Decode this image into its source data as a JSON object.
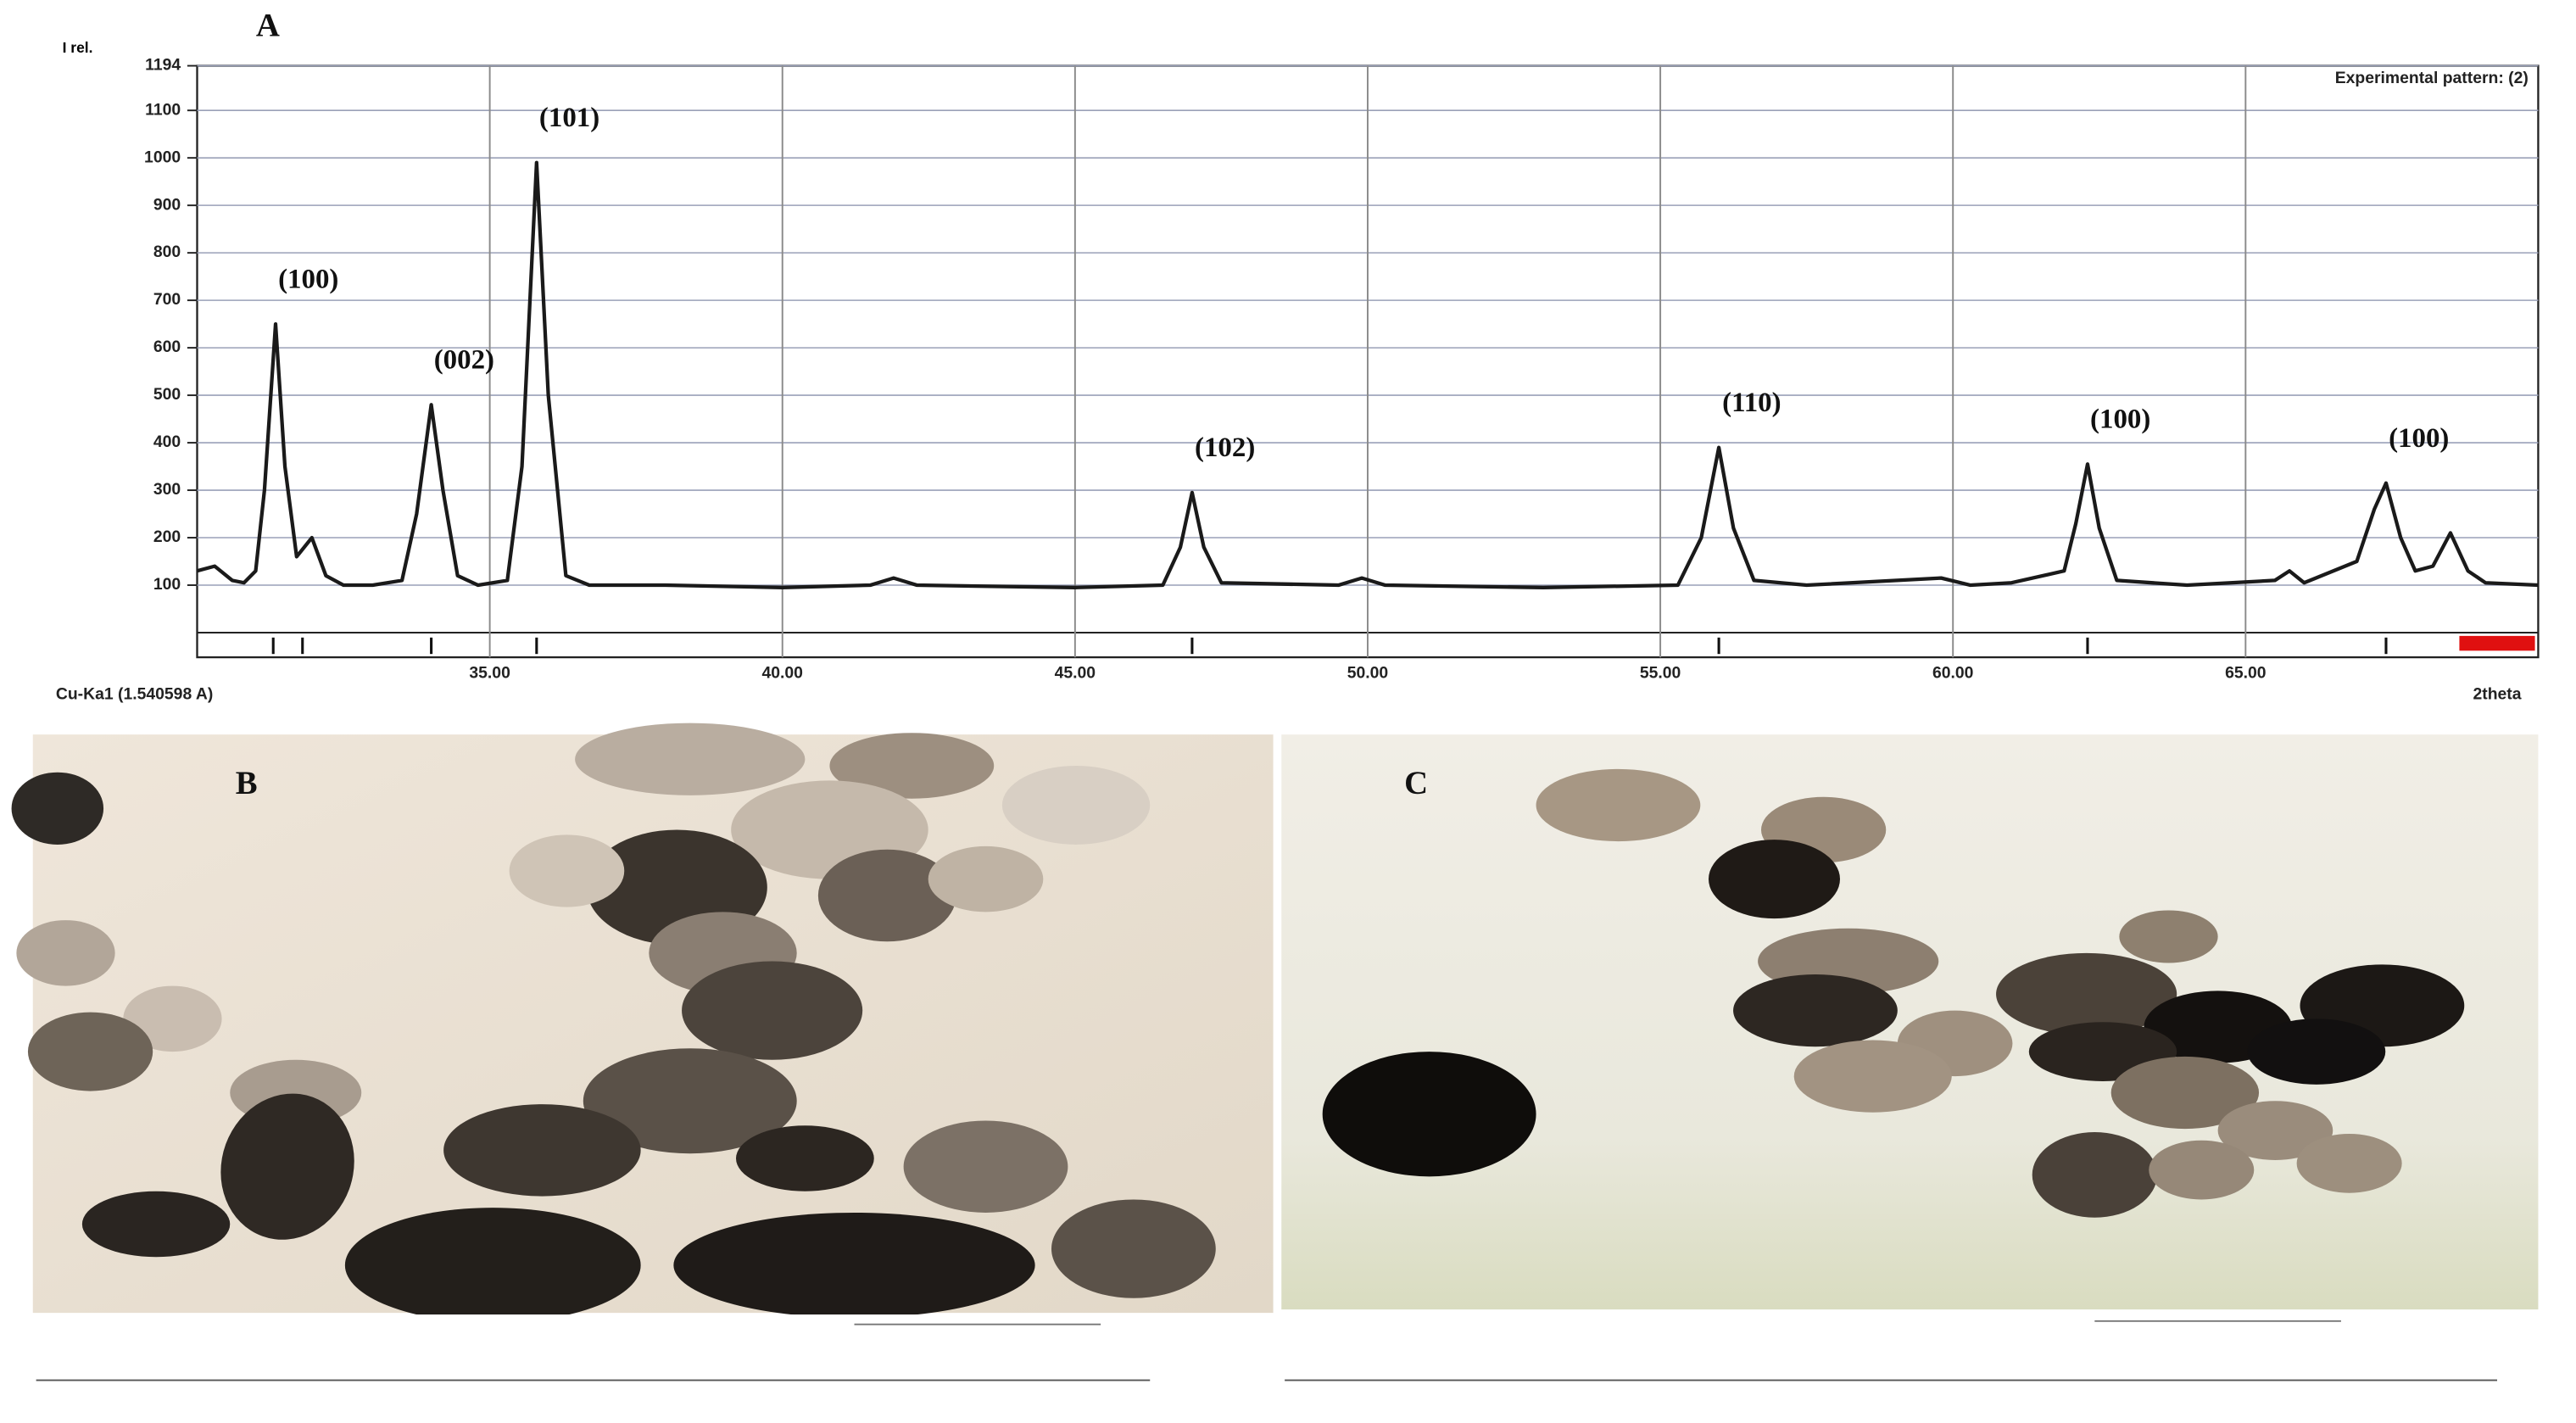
{
  "chart_data": {
    "type": "line",
    "title": "A",
    "y_label": "I rel.",
    "x_label": "2theta",
    "x_note": "Cu-Ka1 (1.540598 A)",
    "x": [
      30,
      30.3,
      30.6,
      30.8,
      31.0,
      31.15,
      31.34,
      31.5,
      31.7,
      31.96,
      32.2,
      32.5,
      33.0,
      33.5,
      33.75,
      34.0,
      34.2,
      34.45,
      34.8,
      35.3,
      35.55,
      35.8,
      36.0,
      36.3,
      36.7,
      38,
      40,
      41.5,
      41.9,
      42.3,
      45,
      46.5,
      46.8,
      47.0,
      47.2,
      47.5,
      49.5,
      49.9,
      50.3,
      53,
      55.3,
      55.7,
      56.0,
      56.25,
      56.6,
      57.5,
      59.8,
      60.3,
      61,
      61.9,
      62.1,
      62.3,
      62.5,
      62.8,
      64,
      65.5,
      65.75,
      66.0,
      66.9,
      67.2,
      67.4,
      67.65,
      67.9,
      68.2,
      68.5,
      68.8,
      69.1,
      70
    ],
    "series": [
      {
        "name": "Experimental pattern: (2)",
        "color": "#1a1a1a",
        "values": [
          130,
          140,
          110,
          105,
          130,
          300,
          650,
          350,
          160,
          200,
          120,
          100,
          100,
          110,
          250,
          480,
          300,
          120,
          100,
          110,
          350,
          990,
          500,
          120,
          100,
          100,
          95,
          100,
          115,
          100,
          95,
          100,
          180,
          295,
          180,
          105,
          100,
          115,
          100,
          95,
          100,
          200,
          390,
          220,
          110,
          100,
          115,
          100,
          105,
          130,
          230,
          355,
          220,
          110,
          100,
          110,
          130,
          105,
          150,
          260,
          315,
          200,
          130,
          140,
          210,
          130,
          105,
          100
        ]
      }
    ],
    "legend": "top-right",
    "xlim": [
      30,
      70
    ],
    "xticks": [
      {
        "value": 35,
        "label": "35.00"
      },
      {
        "value": 40,
        "label": "40.00"
      },
      {
        "value": 45,
        "label": "45.00"
      },
      {
        "value": 50,
        "label": "50.00"
      },
      {
        "value": 55,
        "label": "55.00"
      },
      {
        "value": 60,
        "label": "60.00"
      },
      {
        "value": 65,
        "label": "65.00"
      }
    ],
    "ylim": [
      0,
      1194
    ],
    "yticks": [
      100,
      200,
      300,
      400,
      500,
      600,
      700,
      800,
      900,
      1000,
      1100,
      1194
    ],
    "grid": true,
    "annotations": [
      {
        "text": "(100)",
        "x": 31.34,
        "y": 650
      },
      {
        "text": "(002)",
        "x": 34.0,
        "y": 480
      },
      {
        "text": "(101)",
        "x": 35.8,
        "y": 990
      },
      {
        "text": "(102)",
        "x": 47.0,
        "y": 295
      },
      {
        "text": "(110)",
        "x": 56.0,
        "y": 390
      },
      {
        "text": "(100)",
        "x": 62.3,
        "y": 355
      },
      {
        "text": "(100)",
        "x": 67.4,
        "y": 315
      }
    ],
    "reference_peaks": [
      31.3,
      31.8,
      34.0,
      35.8,
      47.0,
      56.0,
      62.3,
      67.4
    ]
  },
  "panels": [
    {
      "label": "B"
    },
    {
      "label": "C"
    }
  ]
}
